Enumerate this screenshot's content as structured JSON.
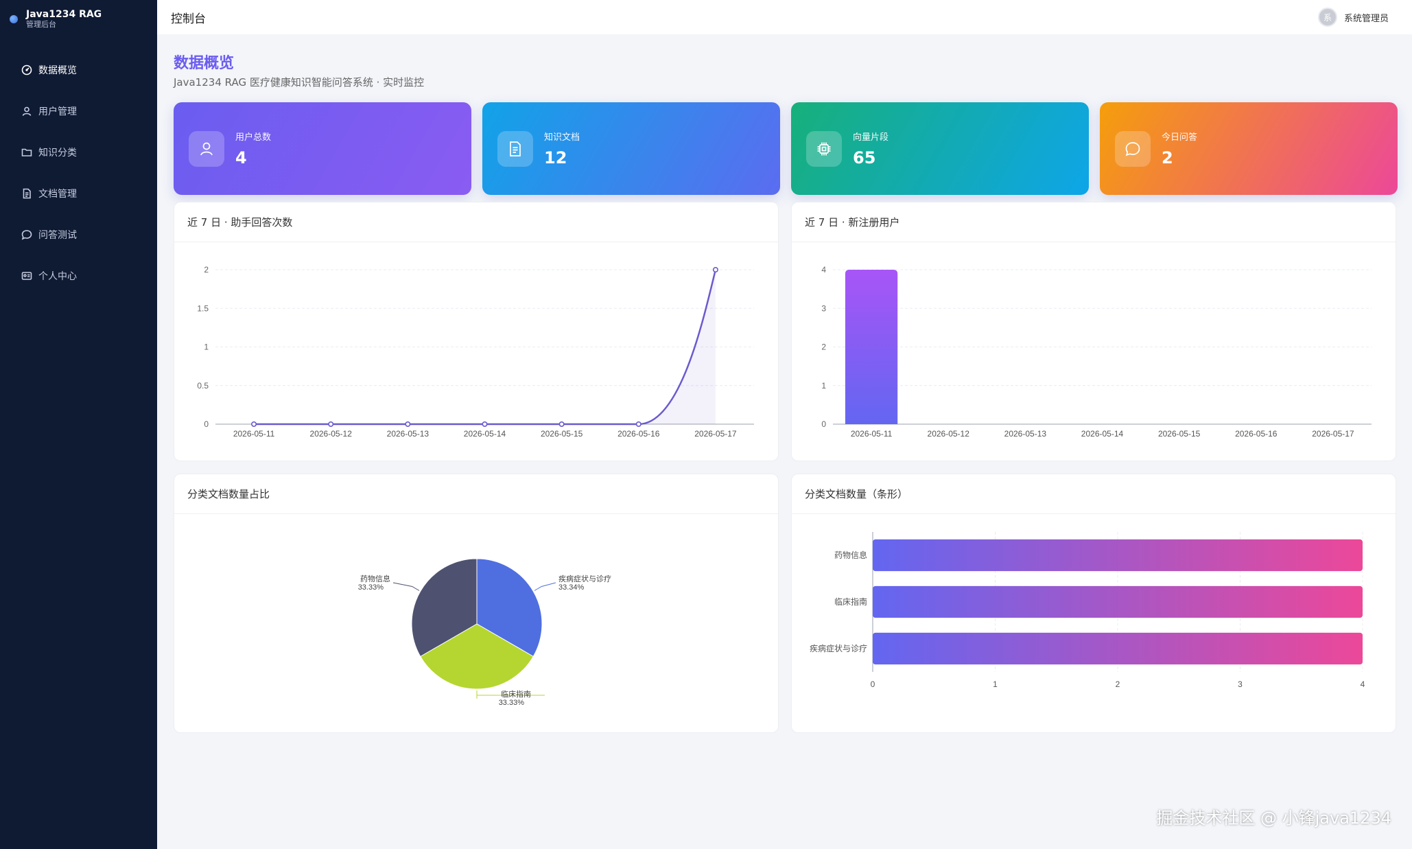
{
  "brand": {
    "title": "Java1234 RAG",
    "subtitle": "管理后台"
  },
  "sidebar": {
    "items": [
      {
        "label": "数据概览",
        "icon": "gauge-icon",
        "active": true
      },
      {
        "label": "用户管理",
        "icon": "user-icon"
      },
      {
        "label": "知识分类",
        "icon": "folder-icon"
      },
      {
        "label": "文档管理",
        "icon": "document-icon"
      },
      {
        "label": "问答测试",
        "icon": "chat-icon"
      },
      {
        "label": "个人中心",
        "icon": "id-card-icon"
      }
    ]
  },
  "header": {
    "title": "控制台",
    "user_name": "系统管理员",
    "avatar_text": "系"
  },
  "main": {
    "title": "数据概览",
    "subtitle": "Java1234 RAG 医疗健康知识智能问答系统 · 实时监控"
  },
  "stats": [
    {
      "label": "用户总数",
      "value": "4",
      "icon": "user-icon",
      "gradient": [
        "#6a5df0",
        "#8a5cf2"
      ]
    },
    {
      "label": "知识文档",
      "value": "12",
      "icon": "document-icon",
      "gradient": [
        "#11a3e8",
        "#5b6cf0"
      ]
    },
    {
      "label": "向量片段",
      "value": "65",
      "icon": "chip-icon",
      "gradient": [
        "#17b07a",
        "#0ea5e9"
      ]
    },
    {
      "label": "今日问答",
      "value": "2",
      "icon": "chat-icon",
      "gradient": [
        "#f59e0b",
        "#ec4899"
      ]
    }
  ],
  "cards": {
    "line_title": "近 7 日 · 助手回答次数",
    "bar_title": "近 7 日 · 新注册用户",
    "pie_title": "分类文档数量占比",
    "hbar_title": "分类文档数量（条形）"
  },
  "watermark": "掘金技术社区 @ 小锋java1234",
  "chart_data": [
    {
      "type": "line",
      "title": "近 7 日 · 助手回答次数",
      "x": [
        "2026-05-11",
        "2026-05-12",
        "2026-05-13",
        "2026-05-14",
        "2026-05-15",
        "2026-05-16",
        "2026-05-17"
      ],
      "values": [
        0,
        0,
        0,
        0,
        0,
        0,
        2
      ],
      "yticks": [
        "0",
        "0.5",
        "1",
        "1.5",
        "2"
      ],
      "ylim": [
        0,
        2
      ],
      "color": "#6a5acd"
    },
    {
      "type": "bar",
      "title": "近 7 日 · 新注册用户",
      "categories": [
        "2026-05-11",
        "2026-05-12",
        "2026-05-13",
        "2026-05-14",
        "2026-05-15",
        "2026-05-16",
        "2026-05-17"
      ],
      "values": [
        4,
        0,
        0,
        0,
        0,
        0,
        0
      ],
      "yticks": [
        "0",
        "1",
        "2",
        "3",
        "4"
      ],
      "ylim": [
        0,
        4
      ],
      "gradient": [
        "#a855f7",
        "#6366f1"
      ]
    },
    {
      "type": "pie",
      "title": "分类文档数量占比",
      "slices": [
        {
          "name": "疾病症状与诊疗",
          "value": 4,
          "percent": "33.34%",
          "color": "#4f6fe0"
        },
        {
          "name": "临床指南",
          "value": 4,
          "percent": "33.33%",
          "color": "#b5d630"
        },
        {
          "name": "药物信息",
          "value": 4,
          "percent": "33.33%",
          "color": "#4e5270"
        }
      ]
    },
    {
      "type": "bar",
      "orientation": "horizontal",
      "title": "分类文档数量（条形）",
      "categories": [
        "药物信息",
        "临床指南",
        "疾病症状与诊疗"
      ],
      "values": [
        4,
        4,
        4
      ],
      "xticks": [
        "0",
        "1",
        "2",
        "3",
        "4"
      ],
      "xlim": [
        0,
        4
      ],
      "gradient": [
        "#6366f1",
        "#ec4899"
      ]
    }
  ]
}
